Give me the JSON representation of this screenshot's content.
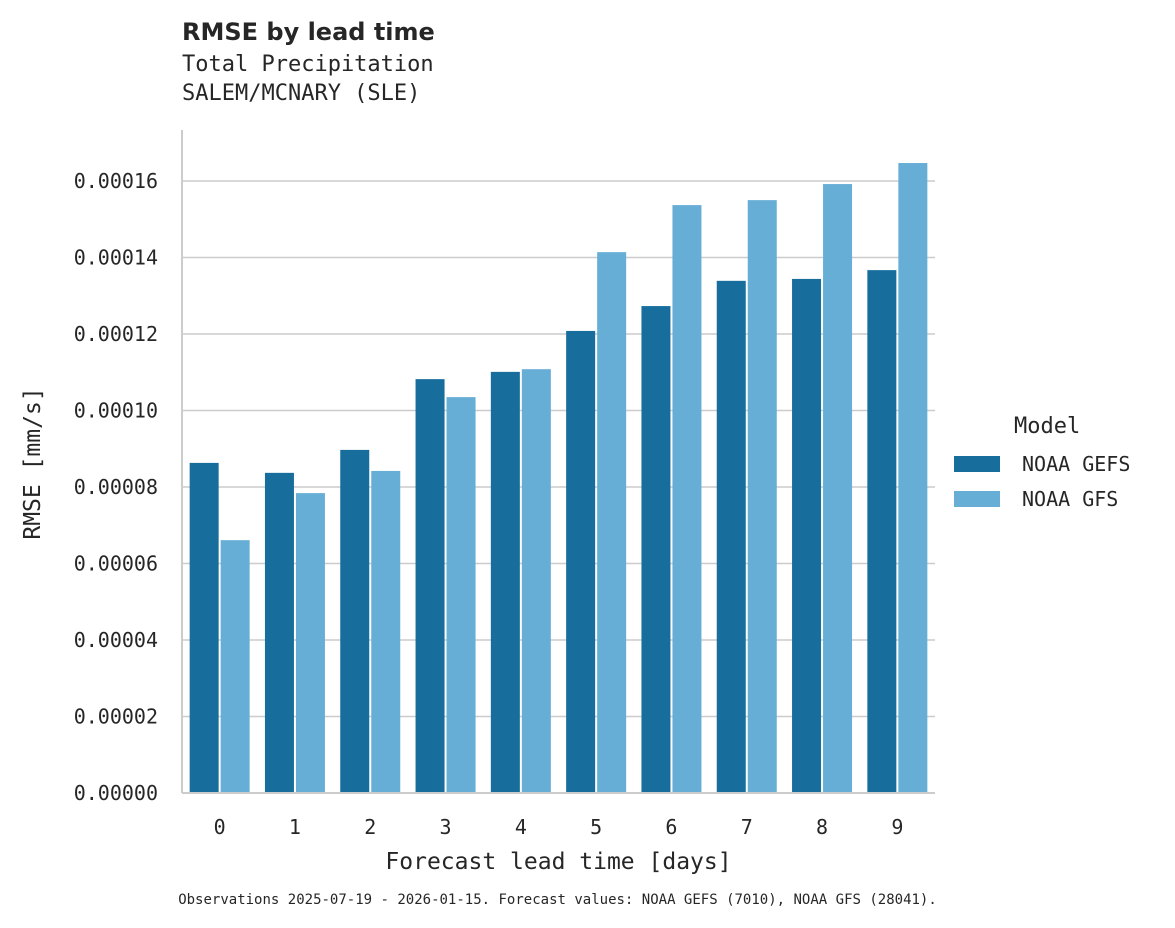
{
  "chart_data": {
    "type": "bar",
    "title": "RMSE by lead time",
    "subtitle_lines": [
      "Total Precipitation",
      "SALEM/MCNARY (SLE)"
    ],
    "xlabel": "Forecast lead time [days]",
    "ylabel": "RMSE [mm/s]",
    "categories": [
      "0",
      "1",
      "2",
      "3",
      "4",
      "5",
      "6",
      "7",
      "8",
      "9"
    ],
    "ylim": [
      0,
      0.000174
    ],
    "yticks": [
      "0.00000",
      "0.00002",
      "0.00004",
      "0.00006",
      "0.00008",
      "0.00010",
      "0.00012",
      "0.00014",
      "0.00016"
    ],
    "grid": true,
    "legend": {
      "title": "Model",
      "placement": "right"
    },
    "series": [
      {
        "name": "NOAA GEFS",
        "color": "#176d9c",
        "values": [
          8.63e-05,
          8.37e-05,
          8.97e-05,
          0.0001082,
          0.0001101,
          0.0001208,
          0.0001273,
          0.0001339,
          0.0001344,
          0.0001367
        ]
      },
      {
        "name": "NOAA GFS",
        "color": "#67aed6",
        "values": [
          6.61e-05,
          7.84e-05,
          8.42e-05,
          0.0001035,
          0.0001108,
          0.0001414,
          0.0001537,
          0.000155,
          0.0001592,
          0.0001647
        ]
      }
    ],
    "footer": "Observations 2025-07-19 - 2026-01-15. Forecast values: NOAA GEFS (7010), NOAA GFS (28041)."
  }
}
